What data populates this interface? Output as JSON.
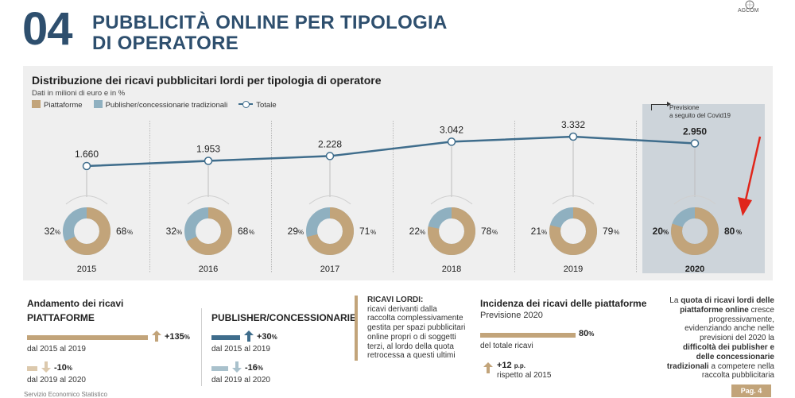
{
  "header": {
    "number": "04",
    "title_line1": "PUBBLICITÀ ONLINE PER TIPOLOGIA",
    "title_line2": "DI OPERATORE",
    "logo_text": "AGCOM"
  },
  "colors": {
    "platforms": "#c2a47a",
    "publishers": "#8fb0c0",
    "total": "#3f6d8c",
    "accent": "#2e4f6e",
    "arrow": "#e0261b"
  },
  "chart_data": {
    "type": "line",
    "title": "Distribuzione dei ricavi pubblicitari lordi per tipologia di operatore",
    "subtitle": "Dati in milioni di euro e in %",
    "legend": [
      "Piattaforme",
      "Publisher/concessionarie tradizionali",
      "Totale"
    ],
    "categories": [
      "2015",
      "2016",
      "2017",
      "2018",
      "2019",
      "2020"
    ],
    "totals": [
      1660,
      1953,
      2228,
      3042,
      3332,
      2950
    ],
    "total_labels": [
      "1.660",
      "1.953",
      "2.228",
      "3.042",
      "3.332",
      "2.950"
    ],
    "series": [
      {
        "name": "Piattaforme",
        "values": [
          68,
          68,
          71,
          78,
          79,
          80
        ]
      },
      {
        "name": "Publisher/concessionarie tradizionali",
        "values": [
          32,
          32,
          29,
          22,
          21,
          20
        ]
      }
    ],
    "forecast_note_line1": "Previsione",
    "forecast_note_line2": "a seguito del Covid19",
    "forecast_index": 5
  },
  "bottom": {
    "andamento_title": "Andamento dei ricavi",
    "piattaforme_label": "PIATTAFORME",
    "piatt_up_pct": "+135",
    "piatt_up_period": "dal 2015 al 2019",
    "piatt_down_pct": "-10",
    "piatt_down_period": "dal 2019 al 2020",
    "publisher_label": "PUBLISHER/CONCESSIONARIE",
    "pub_up_pct": "+30",
    "pub_up_period": "dal 2015 al 2019",
    "pub_down_pct": "-16",
    "pub_down_period": "dal 2019 al 2020",
    "ricavi_title": "RICAVI LORDI:",
    "ricavi_text": "ricavi derivanti dalla raccolta complessivamente gestita per spazi pubblicitari online propri o di soggetti terzi, al lordo della quota retrocessa a questi ultimi",
    "incidenza_title": "Incidenza dei ricavi delle piattaforme",
    "incidenza_sub": "Previsione 2020",
    "incidenza_pct": "80",
    "incidenza_value": 80,
    "incidenza_desc": "del totale ricavi",
    "pp_value": "+12",
    "pp_unit": "p.p.",
    "pp_desc": "rispetto al 2015",
    "note_1": "La ",
    "note_2": "quota di ricavi lordi delle piattaforme online",
    "note_3": " cresce progressivamente, evidenziando anche nelle previsioni del 2020 la ",
    "note_4": "difficoltà dei publisher e delle concessionarie tradizionali",
    "note_5": " a competere nella raccolta pubblicitaria",
    "footer_left": "Servizio Economico Statistico",
    "page": "Pag. 4"
  }
}
